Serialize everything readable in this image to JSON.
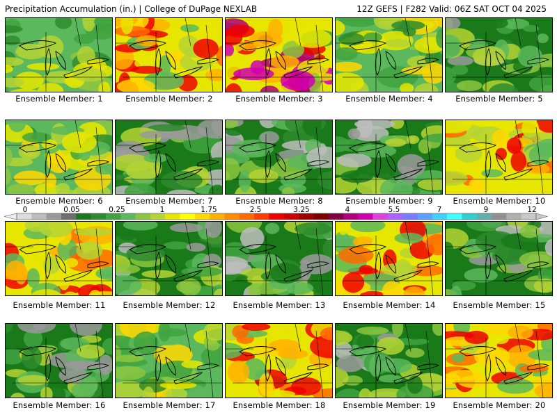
{
  "header": {
    "title": "Precipitation Accumulation (in.) | College of DuPage NEXLAB",
    "valid": "12Z GEFS | F282 Valid: 06Z SAT OCT 04 2025"
  },
  "colorbar": {
    "labels": [
      "0",
      "0.05",
      "0.25",
      "1",
      "1.75",
      "2.5",
      "3.25",
      "4",
      "5.5",
      "7",
      "9",
      "12"
    ],
    "colors": [
      "#dcdcdc",
      "#bdbdbd",
      "#9a9a9a",
      "#6e6e6e",
      "#1a7a1a",
      "#2e8b2e",
      "#3fa33f",
      "#5cb85c",
      "#8cc63f",
      "#b5d334",
      "#e6e600",
      "#ffff00",
      "#ffd700",
      "#ffb000",
      "#ff8c00",
      "#ff6a00",
      "#ff3c00",
      "#ee0000",
      "#cc0000",
      "#a00000",
      "#800000",
      "#800040",
      "#b0007a",
      "#d000b0",
      "#e040e0",
      "#b060ff",
      "#7a7aff",
      "#5aa0ff",
      "#40d0ff",
      "#40ffff",
      "#30d0d0",
      "#60b0b0",
      "#909090",
      "#b0b0b0",
      "#c8c8c8"
    ]
  },
  "panels": [
    {
      "caption": "Ensemble Member: 1",
      "palette": "green_wet"
    },
    {
      "caption": "Ensemble Member: 2",
      "palette": "yellow_red"
    },
    {
      "caption": "Ensemble Member: 3",
      "palette": "mixed_purple"
    },
    {
      "caption": "Ensemble Member: 4",
      "palette": "green_yellow"
    },
    {
      "caption": "Ensemble Member: 5",
      "palette": "green_dry"
    },
    {
      "caption": "Ensemble Member: 6",
      "palette": "green_yellow"
    },
    {
      "caption": "Ensemble Member: 7",
      "palette": "green_dry"
    },
    {
      "caption": "Ensemble Member: 8",
      "palette": "green_dry"
    },
    {
      "caption": "Ensemble Member: 9",
      "palette": "green_dry"
    },
    {
      "caption": "Ensemble Member: 10",
      "palette": "yellow_red"
    },
    {
      "caption": "Ensemble Member: 11",
      "palette": "yellow_red"
    },
    {
      "caption": "Ensemble Member: 12",
      "palette": "green_dry"
    },
    {
      "caption": "Ensemble Member: 13",
      "palette": "green_dry"
    },
    {
      "caption": "Ensemble Member: 14",
      "palette": "yellow_red"
    },
    {
      "caption": "Ensemble Member: 15",
      "palette": "green_dry"
    },
    {
      "caption": "Ensemble Member: 16",
      "palette": "green_dry"
    },
    {
      "caption": "Ensemble Member: 17",
      "palette": "green_yellow"
    },
    {
      "caption": "Ensemble Member: 18",
      "palette": "yellow_red"
    },
    {
      "caption": "Ensemble Member: 19",
      "palette": "green_dry"
    },
    {
      "caption": "Ensemble Member: 20",
      "palette": "yellow_red"
    }
  ]
}
